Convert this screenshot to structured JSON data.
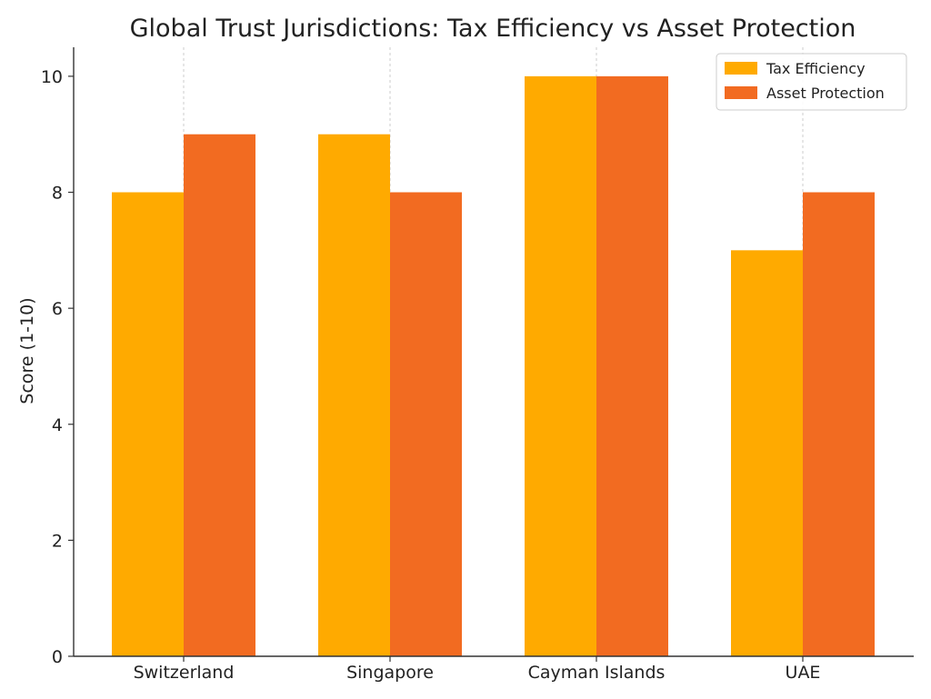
{
  "chart_data": {
    "type": "bar",
    "title": "Global Trust Jurisdictions: Tax Efficiency vs Asset Protection",
    "xlabel": "",
    "ylabel": "Score (1-10)",
    "categories": [
      "Switzerland",
      "Singapore",
      "Cayman Islands",
      "UAE"
    ],
    "series": [
      {
        "name": "Tax Efficiency",
        "values": [
          8,
          9,
          10,
          7
        ],
        "color": "#FFAA00"
      },
      {
        "name": "Asset Protection",
        "values": [
          9,
          8,
          10,
          8
        ],
        "color": "#F26B21"
      }
    ],
    "ylim": [
      0,
      10.5
    ],
    "yticks": [
      "0",
      "2",
      "4",
      "6",
      "8",
      "10"
    ],
    "grid": "vertical-dashed",
    "legend_position": "top-right"
  }
}
